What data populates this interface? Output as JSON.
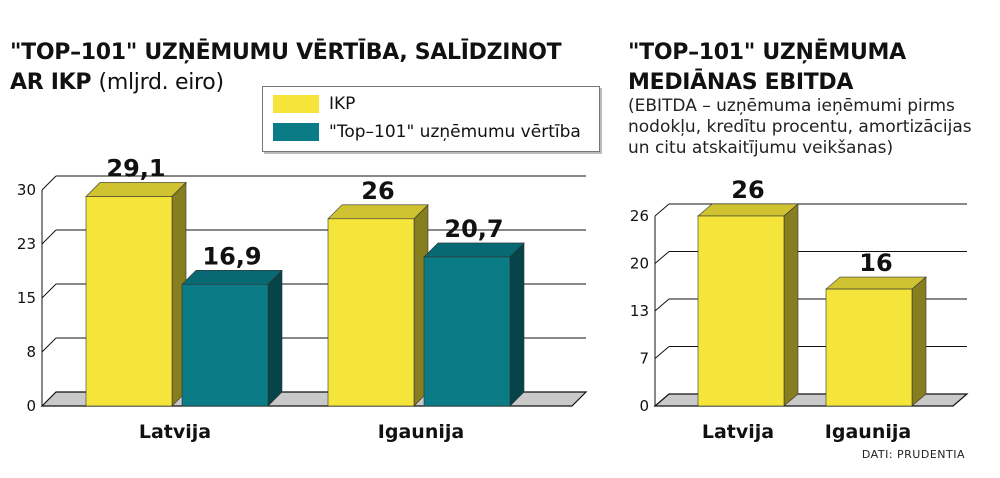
{
  "colors": {
    "ikp": "#f5e53a",
    "top101": "#0b7b86",
    "floor": "#c9c9c9"
  },
  "chart_data": [
    {
      "type": "bar",
      "title": "\"TOP–101\" UZŅĒMUMU VĒRTĪBA, SALĪDZINOT AR IKP",
      "title_unit": "(mljrd. eiro)",
      "categories": [
        "Latvija",
        "Igaunija"
      ],
      "series": [
        {
          "name": "IKP",
          "values": [
            29.1,
            26
          ],
          "labels": [
            "29,1",
            "26"
          ]
        },
        {
          "name": "\"Top–101\" uzņēmumu vērtība",
          "values": [
            16.9,
            20.7
          ],
          "labels": [
            "16,9",
            "20,7"
          ]
        }
      ],
      "yticks": [
        "30",
        "23",
        "15",
        "8",
        "0"
      ],
      "ylim": [
        0,
        30
      ],
      "legend": "top-right",
      "grid": true
    },
    {
      "type": "bar",
      "title": "\"TOP–101\" UZŅĒMUMA MEDIĀNAS EBITDA",
      "subtitle": "(EBITDA – uzņēmuma ieņēmumi pirms nodokļu, kredītu procentu, amortizācijas un citu atskaitījumu veikšanas)",
      "categories": [
        "Latvija",
        "Igaunija"
      ],
      "series": [
        {
          "values": [
            26,
            16
          ],
          "labels": [
            "26",
            "16"
          ]
        }
      ],
      "yticks": [
        "26",
        "20",
        "13",
        "7",
        "0"
      ],
      "ylim": [
        0,
        26
      ],
      "grid": true
    }
  ],
  "source": "DATI: PRUDENTIA"
}
